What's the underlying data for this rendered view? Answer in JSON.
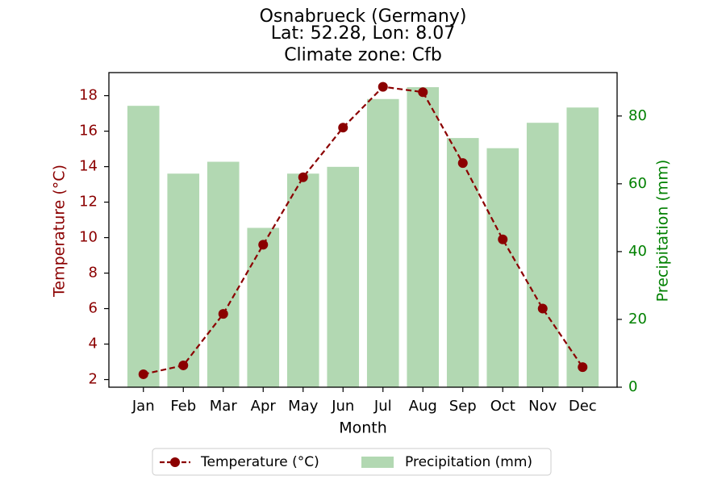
{
  "chart_data": {
    "type": "bar",
    "title": "Osnabrueck (Germany)",
    "subtitle_lines": [
      "Lat: 52.28, Lon: 8.07",
      "Climate zone: Cfb"
    ],
    "categories": [
      "Jan",
      "Feb",
      "Mar",
      "Apr",
      "May",
      "Jun",
      "Jul",
      "Aug",
      "Sep",
      "Oct",
      "Nov",
      "Dec"
    ],
    "xlabel": "Month",
    "series": [
      {
        "name": "Temperature (°C)",
        "type": "line",
        "axis": "left",
        "color": "#8b0000",
        "line_style": "dashed",
        "marker": "circle",
        "values": [
          2.3,
          2.8,
          5.7,
          9.6,
          13.4,
          16.2,
          18.5,
          18.2,
          14.2,
          9.9,
          6.0,
          2.7
        ]
      },
      {
        "name": "Precipitation (mm)",
        "type": "bar",
        "axis": "right",
        "color": "#b2d8b2",
        "values": [
          83,
          63,
          66.5,
          47,
          63,
          65,
          85,
          88.5,
          73.5,
          70.5,
          78,
          82.5
        ]
      }
    ],
    "ylabel_left": "Temperature (°C)",
    "ylabel_right": "Precipitation (mm)",
    "ylim_left": [
      1.57,
      19.3
    ],
    "yticks_left": [
      2,
      4,
      6,
      8,
      10,
      12,
      14,
      16,
      18
    ],
    "ylim_right": [
      0,
      92.8
    ],
    "yticks_right": [
      0,
      20,
      40,
      60,
      80
    ],
    "left_axis_color": "#8b0000",
    "right_axis_color": "#008000",
    "legend_position": "bottom-center",
    "grid": false
  }
}
